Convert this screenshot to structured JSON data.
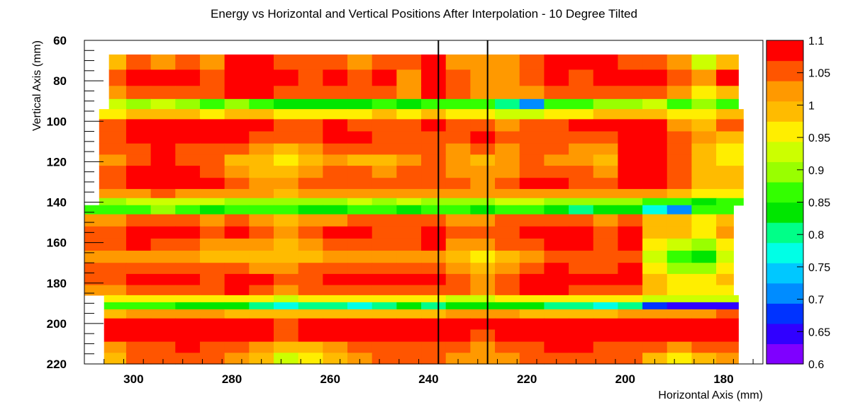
{
  "chart_data": {
    "type": "heatmap",
    "title": "Energy vs Horizontal and Vertical Positions After Interpolation - 10 Degree Tilted",
    "xlabel": "Horizontal Axis (mm)",
    "ylabel": "Vertical Axis (mm)",
    "xlim": [
      310,
      172
    ],
    "ylim": [
      220,
      60
    ],
    "x_reversed": true,
    "y_reversed": true,
    "xticks": [
      300,
      280,
      260,
      240,
      220,
      200,
      180
    ],
    "yticks": [
      60,
      80,
      100,
      120,
      140,
      160,
      180,
      200,
      220
    ],
    "zlim": [
      0.6,
      1.1
    ],
    "zticks": [
      "0.6",
      "0.65",
      "0.7",
      "0.75",
      "0.8",
      "0.85",
      "0.9",
      "0.95",
      "1",
      "1.05",
      "1.1"
    ],
    "palette_colors": [
      "#7f00ff",
      "#3000ff",
      "#0033ff",
      "#008cff",
      "#00c8ff",
      "#00ffe6",
      "#00ff88",
      "#00e600",
      "#33ff00",
      "#99ff00",
      "#ccff00",
      "#ffee00",
      "#ffbb00",
      "#ff9900",
      "#ff5500",
      "#ff0000"
    ],
    "vertical_lines_x": [
      238,
      228
    ],
    "x_columns": [
      304,
      299,
      294,
      289,
      284,
      279,
      274,
      269,
      264,
      259,
      254,
      249,
      244,
      239,
      234,
      229,
      224,
      219,
      214,
      209,
      204,
      199,
      194,
      189,
      184,
      179
    ],
    "rows": [
      {
        "y": 70,
        "x_from": 305,
        "x_to": 177,
        "values": [
          0.99,
          1.04,
          1.02,
          1.05,
          1.03,
          1.09,
          1.09,
          1.06,
          1.04,
          1.06,
          1.03,
          1.05,
          1.04,
          1.08,
          1.03,
          1.02,
          1.03,
          1.06,
          1.08,
          1.09,
          1.07,
          1.06,
          1.05,
          1.01,
          0.94,
          0.99
        ]
      },
      {
        "y": 79,
        "x_from": 305,
        "x_to": 177,
        "values": [
          1.06,
          1.09,
          1.08,
          1.09,
          1.05,
          1.09,
          1.09,
          1.07,
          1.05,
          1.07,
          1.05,
          1.07,
          1.02,
          1.09,
          1.06,
          1.03,
          1.02,
          1.05,
          1.08,
          1.06,
          1.07,
          1.09,
          1.07,
          1.06,
          1.03,
          1.08
        ]
      },
      {
        "y": 86,
        "x_from": 305,
        "x_to": 177,
        "values": [
          1.03,
          1.05,
          1.05,
          1.06,
          1.05,
          1.08,
          1.08,
          1.05,
          1.04,
          1.06,
          1.05,
          1.06,
          1.01,
          1.08,
          1.06,
          1.02,
          1.01,
          1.03,
          1.05,
          1.04,
          1.06,
          1.06,
          1.04,
          1.01,
          0.97,
          0.99
        ]
      },
      {
        "y": 92,
        "x_from": 305,
        "x_to": 177,
        "values": [
          0.92,
          0.91,
          0.93,
          0.89,
          0.86,
          0.9,
          0.86,
          0.83,
          0.85,
          0.84,
          0.82,
          0.86,
          0.83,
          0.88,
          0.86,
          0.86,
          0.8,
          0.72,
          0.86,
          0.88,
          0.91,
          0.89,
          0.92,
          0.88,
          0.9,
          0.88
        ]
      },
      {
        "y": 96,
        "x_from": 307,
        "x_to": 176,
        "values": [
          0.96,
          0.98,
          0.99,
          1.0,
          0.97,
          1.0,
          0.99,
          0.97,
          0.96,
          0.97,
          0.96,
          0.99,
          0.95,
          0.99,
          0.97,
          0.95,
          0.94,
          0.93,
          0.96,
          0.97,
          0.98,
          1.0,
          0.99,
          0.97,
          0.96,
          0.98
        ]
      },
      {
        "y": 102,
        "x_from": 307,
        "x_to": 176,
        "values": [
          1.05,
          1.07,
          1.08,
          1.08,
          1.07,
          1.08,
          1.08,
          1.06,
          1.04,
          1.07,
          1.05,
          1.06,
          1.04,
          1.07,
          1.06,
          1.05,
          1.03,
          1.04,
          1.06,
          1.07,
          1.08,
          1.09,
          1.08,
          1.03,
          1.0,
          1.06
        ]
      },
      {
        "y": 108,
        "x_from": 307,
        "x_to": 176,
        "values": [
          1.06,
          1.08,
          1.09,
          1.07,
          1.08,
          1.07,
          1.06,
          1.04,
          1.06,
          1.07,
          1.08,
          1.06,
          1.05,
          1.06,
          1.06,
          1.07,
          1.04,
          1.06,
          1.05,
          1.06,
          1.04,
          1.09,
          1.09,
          1.06,
          1.02,
          0.99
        ]
      },
      {
        "y": 114,
        "x_from": 307,
        "x_to": 176,
        "values": [
          1.04,
          1.06,
          1.07,
          1.06,
          1.06,
          1.04,
          1.02,
          1.0,
          1.02,
          1.04,
          1.05,
          1.04,
          1.04,
          1.05,
          1.03,
          1.04,
          1.03,
          1.05,
          1.04,
          1.03,
          1.02,
          1.08,
          1.08,
          1.05,
          1.0,
          0.97
        ]
      },
      {
        "y": 119,
        "x_from": 307,
        "x_to": 176,
        "values": [
          1.03,
          1.05,
          1.07,
          1.06,
          1.05,
          1.0,
          0.98,
          0.96,
          0.99,
          1.02,
          1.0,
          1.0,
          1.03,
          1.04,
          1.01,
          1.0,
          1.01,
          1.04,
          1.03,
          1.01,
          1.0,
          1.08,
          1.08,
          1.04,
          0.99,
          0.96
        ]
      },
      {
        "y": 125,
        "x_from": 307,
        "x_to": 176,
        "values": [
          1.04,
          1.07,
          1.08,
          1.07,
          1.06,
          1.03,
          1.0,
          0.99,
          1.01,
          1.05,
          1.04,
          1.03,
          1.04,
          1.05,
          1.03,
          1.02,
          1.03,
          1.06,
          1.06,
          1.04,
          1.02,
          1.09,
          1.09,
          1.05,
          1.0,
          0.98
        ]
      },
      {
        "y": 131,
        "x_from": 307,
        "x_to": 176,
        "values": [
          1.05,
          1.07,
          1.08,
          1.08,
          1.07,
          1.05,
          1.03,
          1.02,
          1.04,
          1.06,
          1.06,
          1.05,
          1.05,
          1.05,
          1.04,
          1.03,
          1.04,
          1.07,
          1.07,
          1.05,
          1.04,
          1.08,
          1.08,
          1.04,
          1.0,
          1.0
        ]
      },
      {
        "y": 136,
        "x_from": 307,
        "x_to": 176,
        "values": [
          1.02,
          1.03,
          1.04,
          1.03,
          1.03,
          1.02,
          1.01,
          1.0,
          1.01,
          1.02,
          1.02,
          1.01,
          1.02,
          1.02,
          1.01,
          1.01,
          1.01,
          1.02,
          1.02,
          1.02,
          1.01,
          1.03,
          1.01,
          0.98,
          0.96,
          0.96
        ]
      },
      {
        "y": 140,
        "x_from": 307,
        "x_to": 176,
        "values": [
          0.91,
          0.92,
          0.93,
          0.92,
          0.92,
          0.91,
          0.9,
          0.9,
          0.91,
          0.91,
          0.92,
          0.91,
          0.92,
          0.91,
          0.91,
          0.91,
          0.92,
          0.92,
          0.91,
          0.91,
          0.9,
          0.91,
          0.88,
          0.86,
          0.85,
          0.88
        ]
      },
      {
        "y": 143,
        "x_from": 310,
        "x_to": 178,
        "values": [
          0.88,
          0.87,
          0.89,
          0.86,
          0.85,
          0.87,
          0.88,
          0.87,
          0.82,
          0.85,
          0.86,
          0.87,
          0.85,
          0.88,
          0.86,
          0.85,
          0.86,
          0.87,
          0.84,
          0.8,
          0.84,
          0.82,
          0.76,
          0.72,
          0.87,
          0.88
        ]
      },
      {
        "y": 149,
        "x_from": 310,
        "x_to": 178,
        "values": [
          1.03,
          1.04,
          1.05,
          1.04,
          1.03,
          1.04,
          1.03,
          1.0,
          1.02,
          1.03,
          1.04,
          1.05,
          1.04,
          1.05,
          1.03,
          1.03,
          1.04,
          1.05,
          1.04,
          1.04,
          1.03,
          1.05,
          0.98,
          0.98,
          0.97,
          0.99
        ]
      },
      {
        "y": 155,
        "x_from": 310,
        "x_to": 178,
        "values": [
          1.06,
          1.08,
          1.09,
          1.08,
          1.06,
          1.07,
          1.05,
          1.02,
          1.05,
          1.07,
          1.07,
          1.06,
          1.06,
          1.08,
          1.04,
          1.05,
          1.06,
          1.08,
          1.09,
          1.07,
          1.06,
          1.09,
          1.0,
          0.98,
          0.97,
          1.01
        ]
      },
      {
        "y": 161,
        "x_from": 310,
        "x_to": 178,
        "values": [
          1.05,
          1.07,
          1.06,
          1.05,
          1.03,
          1.03,
          1.02,
          1.0,
          1.03,
          1.05,
          1.06,
          1.05,
          1.06,
          1.07,
          1.02,
          1.01,
          1.04,
          1.06,
          1.08,
          1.07,
          1.06,
          1.08,
          0.96,
          0.92,
          0.9,
          0.96
        ]
      },
      {
        "y": 167,
        "x_from": 310,
        "x_to": 178,
        "values": [
          1.02,
          1.03,
          1.02,
          1.01,
          1.0,
          0.99,
          0.98,
          0.98,
          1.0,
          1.02,
          1.03,
          1.02,
          1.03,
          1.03,
          0.98,
          0.96,
          0.99,
          1.02,
          1.04,
          1.05,
          1.04,
          1.05,
          0.94,
          0.86,
          0.85,
          0.94
        ]
      },
      {
        "y": 173,
        "x_from": 310,
        "x_to": 178,
        "values": [
          1.04,
          1.06,
          1.05,
          1.04,
          1.04,
          1.04,
          1.03,
          1.02,
          1.04,
          1.05,
          1.06,
          1.06,
          1.05,
          1.06,
          1.02,
          1.0,
          1.03,
          1.05,
          1.07,
          1.06,
          1.06,
          1.07,
          0.96,
          0.9,
          0.89,
          0.95
        ]
      },
      {
        "y": 178,
        "x_from": 310,
        "x_to": 178,
        "values": [
          1.05,
          1.08,
          1.08,
          1.07,
          1.06,
          1.08,
          1.07,
          1.04,
          1.05,
          1.07,
          1.08,
          1.07,
          1.07,
          1.08,
          1.04,
          1.03,
          1.05,
          1.08,
          1.09,
          1.07,
          1.07,
          1.08,
          1.0,
          0.96,
          0.95,
          0.98
        ]
      },
      {
        "y": 184,
        "x_from": 310,
        "x_to": 178,
        "values": [
          1.03,
          1.06,
          1.06,
          1.05,
          1.05,
          1.07,
          1.05,
          1.03,
          1.04,
          1.05,
          1.06,
          1.05,
          1.05,
          1.06,
          1.04,
          1.03,
          1.04,
          1.07,
          1.08,
          1.06,
          1.06,
          1.06,
          1.0,
          0.96,
          0.95,
          0.97
        ]
      },
      {
        "y": 188,
        "x_from": 306,
        "x_to": 177,
        "values": [
          0.95,
          0.97,
          0.96,
          0.96,
          0.95,
          0.96,
          0.95,
          0.94,
          0.95,
          0.96,
          0.95,
          0.96,
          0.95,
          0.95,
          0.94,
          0.94,
          0.95,
          0.96,
          0.96,
          0.95,
          0.95,
          0.96,
          0.94,
          0.93,
          0.93,
          0.94
        ]
      },
      {
        "y": 191,
        "x_from": 306,
        "x_to": 177,
        "values": [
          0.88,
          0.88,
          0.86,
          0.85,
          0.83,
          0.82,
          0.79,
          0.78,
          0.8,
          0.79,
          0.78,
          0.8,
          0.82,
          0.79,
          0.84,
          0.85,
          0.83,
          0.82,
          0.8,
          0.79,
          0.78,
          0.8,
          0.67,
          0.66,
          0.65,
          0.66
        ]
      },
      {
        "y": 195,
        "x_from": 306,
        "x_to": 177,
        "values": [
          0.99,
          1.01,
          1.02,
          1.02,
          1.01,
          1.0,
          0.99,
          0.98,
          0.98,
          0.98,
          0.99,
          1.0,
          0.99,
          1.0,
          1.01,
          1.02,
          1.01,
          1.0,
          1.0,
          0.99,
          1.0,
          1.01,
          1.02,
          1.03,
          1.02,
          1.04
        ]
      },
      {
        "y": 200,
        "x_from": 306,
        "x_to": 177,
        "values": [
          1.08,
          1.09,
          1.09,
          1.09,
          1.08,
          1.08,
          1.07,
          1.06,
          1.07,
          1.08,
          1.08,
          1.09,
          1.08,
          1.09,
          1.08,
          1.08,
          1.09,
          1.09,
          1.09,
          1.09,
          1.09,
          1.09,
          1.09,
          1.09,
          1.09,
          1.09
        ]
      },
      {
        "y": 206,
        "x_from": 306,
        "x_to": 177,
        "values": [
          1.07,
          1.08,
          1.09,
          1.09,
          1.09,
          1.09,
          1.09,
          1.06,
          1.07,
          1.08,
          1.08,
          1.08,
          1.07,
          1.08,
          1.07,
          1.06,
          1.07,
          1.08,
          1.08,
          1.09,
          1.08,
          1.08,
          1.09,
          1.09,
          1.08,
          1.09
        ]
      },
      {
        "y": 212,
        "x_from": 306,
        "x_to": 177,
        "values": [
          1.02,
          1.04,
          1.06,
          1.07,
          1.06,
          1.05,
          1.03,
          1.0,
          0.99,
          1.02,
          1.04,
          1.05,
          1.04,
          1.05,
          1.04,
          1.02,
          1.04,
          1.05,
          1.07,
          1.07,
          1.06,
          1.05,
          1.04,
          1.03,
          1.04,
          1.05
        ]
      },
      {
        "y": 217,
        "x_from": 306,
        "x_to": 177,
        "values": [
          0.99,
          1.04,
          1.05,
          1.06,
          1.05,
          1.03,
          0.98,
          0.93,
          0.96,
          1.0,
          1.03,
          1.04,
          1.04,
          1.05,
          1.03,
          1.02,
          1.02,
          1.04,
          1.06,
          1.06,
          1.05,
          1.04,
          1.0,
          0.97,
          0.98,
          1.02
        ]
      }
    ]
  }
}
